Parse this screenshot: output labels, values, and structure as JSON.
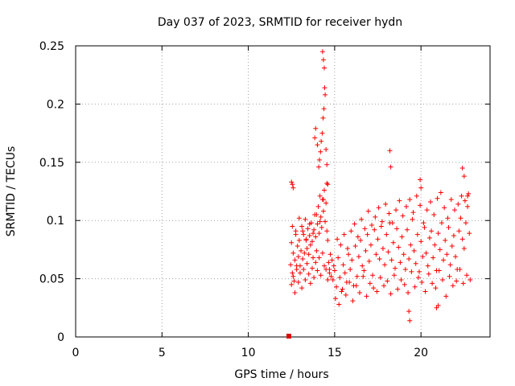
{
  "chart_data": {
    "type": "scatter",
    "title": "Day 037 of 2023, SRMTID for receiver hydn",
    "xlabel": "GPS time / hours",
    "ylabel": "SRMTID / TECUs",
    "xlim": [
      0,
      24
    ],
    "ylim": [
      0,
      0.25
    ],
    "xticks": [
      0,
      5,
      10,
      15,
      20
    ],
    "yticks": [
      0,
      0.05,
      0.1,
      0.15,
      0.2,
      0.25
    ],
    "xtick_labels": [
      "0",
      "5",
      "10",
      "15",
      "20"
    ],
    "ytick_labels": [
      "0",
      "0.05",
      "0.1",
      "0.15",
      "0.2",
      "0.25"
    ],
    "grid": true,
    "marker": "+",
    "color": "#ff0000",
    "series": [
      {
        "name": "SRMTID",
        "x": [
          12.45,
          12.5,
          12.55,
          12.6,
          12.65,
          12.7,
          12.75,
          12.8,
          12.85,
          12.9,
          12.95,
          13.0,
          13.05,
          13.1,
          13.15,
          13.2,
          13.25,
          13.3,
          13.35,
          13.4,
          13.45,
          13.5,
          13.55,
          13.6,
          13.65,
          13.7,
          13.75,
          13.8,
          13.85,
          13.9,
          13.95,
          14.0,
          14.05,
          14.1,
          14.15,
          14.2,
          14.25,
          14.3,
          14.35,
          14.4,
          14.45,
          14.5,
          14.55,
          14.6,
          14.65,
          14.7,
          14.75,
          14.8,
          14.85,
          14.9,
          14.95,
          15.0,
          15.1,
          15.2,
          15.3,
          15.4,
          15.5,
          15.6,
          15.7,
          15.8,
          15.9,
          16.0,
          16.1,
          16.2,
          16.3,
          16.4,
          16.5,
          16.6,
          16.7,
          16.8,
          16.9,
          17.0,
          17.1,
          17.2,
          17.3,
          17.4,
          17.5,
          17.6,
          17.7,
          17.8,
          17.9,
          18.0,
          18.1,
          18.2,
          18.3,
          18.4,
          18.5,
          18.6,
          18.7,
          18.8,
          18.9,
          19.0,
          19.1,
          19.2,
          19.3,
          19.4,
          19.5,
          19.6,
          19.7,
          19.8,
          19.9,
          20.0,
          20.1,
          20.2,
          20.3,
          20.4,
          20.5,
          20.6,
          20.7,
          20.8,
          20.9,
          21.0,
          21.1,
          21.2,
          21.3,
          21.4,
          21.5,
          21.6,
          21.7,
          21.8,
          21.9,
          22.0,
          22.1,
          22.2,
          22.3,
          22.4,
          22.5,
          22.6,
          22.7,
          22.8,
          12.5,
          12.6,
          12.7,
          12.8,
          12.9,
          13.0,
          13.1,
          13.2,
          13.3,
          13.4,
          13.5,
          13.6,
          13.7,
          13.8,
          13.9,
          14.0,
          14.1,
          14.2,
          14.3,
          14.4,
          14.5,
          14.6,
          14.7,
          15.05,
          15.25,
          15.45,
          15.65,
          15.85,
          16.05,
          16.25,
          16.45,
          16.65,
          16.85,
          17.05,
          17.25,
          17.45,
          17.65,
          17.85,
          18.05,
          18.25,
          18.45,
          18.65,
          18.85,
          19.05,
          19.25,
          19.45,
          19.65,
          19.85,
          20.05,
          20.25,
          20.45,
          20.65,
          20.85,
          21.05,
          21.25,
          21.45,
          21.65,
          21.85,
          22.05,
          22.25,
          22.45,
          22.65,
          22.85,
          12.55,
          12.75,
          12.95,
          13.15,
          13.35,
          13.55,
          13.75,
          13.95,
          14.15,
          14.35,
          14.55,
          15.15,
          15.35,
          15.55,
          15.75,
          15.95,
          16.15,
          16.35,
          16.55,
          16.75,
          16.95,
          17.15,
          17.35,
          17.55,
          17.75,
          17.95,
          18.15,
          18.35,
          18.55,
          18.75,
          18.95,
          19.15,
          19.35,
          19.55,
          19.75,
          19.95,
          20.15,
          20.35,
          20.55,
          20.75,
          20.95,
          21.15,
          21.35,
          21.55,
          21.75,
          21.95,
          22.15,
          22.35,
          22.55,
          22.75,
          14.3,
          14.35,
          14.4,
          14.42,
          14.45,
          14.38,
          14.33,
          14.28,
          14.22,
          14.18,
          14.12,
          14.08,
          14.5,
          14.55,
          14.6,
          13.9,
          13.85,
          14.0,
          18.2,
          18.25,
          19.3,
          19.35,
          19.95,
          20.0,
          20.9,
          21.0,
          22.4,
          22.5,
          22.7,
          12.5,
          12.55,
          12.6
        ],
        "y": [
          0.062,
          0.081,
          0.055,
          0.072,
          0.048,
          0.066,
          0.091,
          0.058,
          0.078,
          0.069,
          0.083,
          0.061,
          0.074,
          0.095,
          0.067,
          0.088,
          0.072,
          0.101,
          0.084,
          0.076,
          0.093,
          0.071,
          0.087,
          0.079,
          0.098,
          0.082,
          0.068,
          0.092,
          0.105,
          0.086,
          0.074,
          0.097,
          0.112,
          0.089,
          0.121,
          0.103,
          0.094,
          0.118,
          0.108,
          0.126,
          0.099,
          0.115,
          0.091,
          0.083,
          0.064,
          0.058,
          0.071,
          0.052,
          0.066,
          0.049,
          0.061,
          0.057,
          0.043,
          0.068,
          0.051,
          0.039,
          0.062,
          0.055,
          0.047,
          0.071,
          0.058,
          0.066,
          0.044,
          0.078,
          0.052,
          0.069,
          0.083,
          0.061,
          0.057,
          0.074,
          0.088,
          0.065,
          0.079,
          0.053,
          0.092,
          0.071,
          0.084,
          0.067,
          0.095,
          0.076,
          0.062,
          0.088,
          0.073,
          0.098,
          0.066,
          0.081,
          0.059,
          0.093,
          0.077,
          0.064,
          0.086,
          0.071,
          0.058,
          0.092,
          0.067,
          0.079,
          0.101,
          0.074,
          0.063,
          0.088,
          0.056,
          0.082,
          0.069,
          0.094,
          0.072,
          0.061,
          0.085,
          0.091,
          0.068,
          0.079,
          0.057,
          0.089,
          0.075,
          0.098,
          0.066,
          0.083,
          0.071,
          0.094,
          0.062,
          0.078,
          0.087,
          0.069,
          0.058,
          0.091,
          0.102,
          0.084,
          0.076,
          0.098,
          0.112,
          0.089,
          0.045,
          0.052,
          0.038,
          0.061,
          0.047,
          0.055,
          0.042,
          0.058,
          0.049,
          0.063,
          0.054,
          0.046,
          0.059,
          0.051,
          0.064,
          0.057,
          0.068,
          0.053,
          0.072,
          0.061,
          0.058,
          0.049,
          0.055,
          0.033,
          0.028,
          0.041,
          0.036,
          0.047,
          0.031,
          0.044,
          0.038,
          0.052,
          0.035,
          0.046,
          0.042,
          0.039,
          0.051,
          0.044,
          0.048,
          0.037,
          0.053,
          0.041,
          0.049,
          0.045,
          0.038,
          0.056,
          0.043,
          0.051,
          0.047,
          0.039,
          0.054,
          0.046,
          0.042,
          0.057,
          0.049,
          0.035,
          0.052,
          0.044,
          0.048,
          0.058,
          0.046,
          0.053,
          0.049,
          0.095,
          0.088,
          0.102,
          0.091,
          0.083,
          0.097,
          0.089,
          0.105,
          0.099,
          0.118,
          0.132,
          0.084,
          0.079,
          0.088,
          0.076,
          0.091,
          0.097,
          0.086,
          0.101,
          0.093,
          0.108,
          0.096,
          0.103,
          0.111,
          0.099,
          0.114,
          0.106,
          0.098,
          0.109,
          0.117,
          0.104,
          0.112,
          0.118,
          0.107,
          0.121,
          0.113,
          0.098,
          0.109,
          0.116,
          0.105,
          0.119,
          0.124,
          0.111,
          0.102,
          0.118,
          0.109,
          0.114,
          0.121,
          0.117,
          0.123,
          0.245,
          0.238,
          0.231,
          0.214,
          0.208,
          0.196,
          0.188,
          0.175,
          0.168,
          0.159,
          0.152,
          0.146,
          0.161,
          0.148,
          0.131,
          0.179,
          0.171,
          0.165,
          0.16,
          0.146,
          0.022,
          0.014,
          0.135,
          0.128,
          0.025,
          0.027,
          0.145,
          0.138,
          0.121,
          0.133,
          0.131,
          0.128
        ]
      }
    ],
    "legend": "none"
  }
}
